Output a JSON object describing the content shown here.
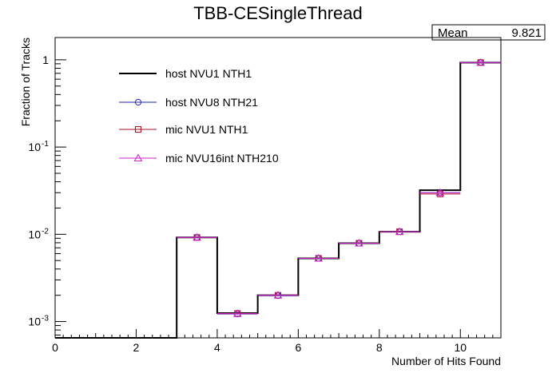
{
  "chart_data": {
    "type": "step",
    "title": "TBB-CESingleThread",
    "xlabel": "Number of Hits Found",
    "ylabel": "Fraction of Tracks",
    "xlim": [
      0,
      11
    ],
    "ylim": [
      0.00065,
      1.8
    ],
    "log_y": true,
    "bin_edges": [
      0,
      1,
      2,
      3,
      4,
      5,
      6,
      7,
      8,
      9,
      10,
      11
    ],
    "x_ticks": [
      0,
      2,
      4,
      6,
      8,
      10
    ],
    "y_ticks": [
      {
        "value": 0.001,
        "base": "10",
        "exp": "-3"
      },
      {
        "value": 0.01,
        "base": "10",
        "exp": "-2"
      },
      {
        "value": 0.1,
        "base": "10",
        "exp": "-1"
      },
      {
        "value": 1,
        "base": "1",
        "exp": ""
      }
    ],
    "series": [
      {
        "name": "host NVU1 NTH1",
        "color": "#000000",
        "marker": "none",
        "values": [
          0,
          0,
          0,
          0.0092,
          0.00125,
          0.002,
          0.0053,
          0.0079,
          0.0107,
          0.032,
          0.93
        ]
      },
      {
        "name": "host NVU8 NTH21",
        "color": "#2222aa",
        "marker": "circle",
        "values": [
          0,
          0,
          0,
          0.0092,
          0.00122,
          0.00198,
          0.0053,
          0.0079,
          0.0107,
          0.03,
          0.935
        ]
      },
      {
        "name": "mic NVU1 NTH1",
        "color": "#aa1122",
        "marker": "square",
        "values": [
          0,
          0,
          0,
          0.0092,
          0.00124,
          0.002,
          0.0053,
          0.0079,
          0.0107,
          0.029,
          0.93
        ]
      },
      {
        "name": "mic NVU16int NTH210",
        "color": "#cc22cc",
        "marker": "triangle",
        "values": [
          0,
          0,
          0,
          0.0092,
          0.00123,
          0.002,
          0.0053,
          0.0079,
          0.0107,
          0.03,
          0.93
        ]
      }
    ],
    "stats": {
      "label": "Mean",
      "value": "9.821"
    },
    "legend_position": "top-left"
  }
}
